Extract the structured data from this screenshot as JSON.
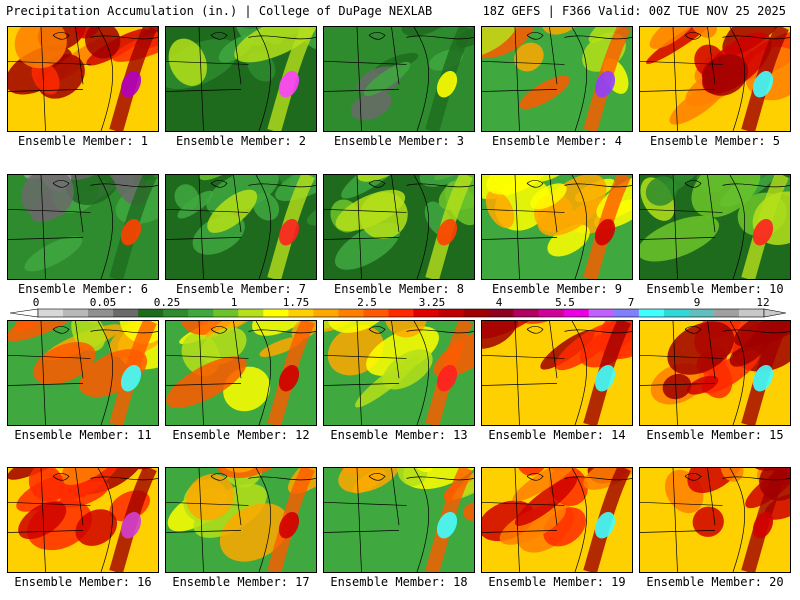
{
  "header": {
    "title_left": "Precipitation Accumulation (in.) | College of DuPage NEXLAB",
    "title_right": "18Z GEFS | F366 Valid: 00Z TUE NOV 25 2025"
  },
  "chart_data": {
    "type": "map",
    "title": "Precipitation Accumulation (in.)",
    "subtitle": "18Z GEFS | F366 Valid: 00Z TUE NOV 25 2025",
    "units": "in.",
    "members": [
      {
        "label": "Ensemble Member: 1",
        "dominant": "heavy",
        "max_color": "#b000c0"
      },
      {
        "label": "Ensemble Member: 2",
        "dominant": "light",
        "max_color": "#ff40ff"
      },
      {
        "label": "Ensemble Member: 3",
        "dominant": "dry-gray",
        "max_color": "#ffff00"
      },
      {
        "label": "Ensemble Member: 4",
        "dominant": "mixed",
        "max_color": "#9040ff"
      },
      {
        "label": "Ensemble Member: 5",
        "dominant": "heavy",
        "max_color": "#40ffff"
      },
      {
        "label": "Ensemble Member: 6",
        "dominant": "dry-gray",
        "max_color": "#ff4000"
      },
      {
        "label": "Ensemble Member: 7",
        "dominant": "light",
        "max_color": "#ff2020"
      },
      {
        "label": "Ensemble Member: 8",
        "dominant": "light",
        "max_color": "#ff4000"
      },
      {
        "label": "Ensemble Member: 9",
        "dominant": "mixed",
        "max_color": "#d00000"
      },
      {
        "label": "Ensemble Member: 10",
        "dominant": "light",
        "max_color": "#ff2020"
      },
      {
        "label": "Ensemble Member: 11",
        "dominant": "mixed",
        "max_color": "#40ffff"
      },
      {
        "label": "Ensemble Member: 12",
        "dominant": "mixed",
        "max_color": "#d00000"
      },
      {
        "label": "Ensemble Member: 13",
        "dominant": "mixed",
        "max_color": "#ff2020"
      },
      {
        "label": "Ensemble Member: 14",
        "dominant": "heavy",
        "max_color": "#40ffff"
      },
      {
        "label": "Ensemble Member: 15",
        "dominant": "heavy",
        "max_color": "#40ffff"
      },
      {
        "label": "Ensemble Member: 16",
        "dominant": "heavy",
        "max_color": "#d040d0"
      },
      {
        "label": "Ensemble Member: 17",
        "dominant": "mixed",
        "max_color": "#d00000"
      },
      {
        "label": "Ensemble Member: 18",
        "dominant": "mixed",
        "max_color": "#40ffff"
      },
      {
        "label": "Ensemble Member: 19",
        "dominant": "heavy",
        "max_color": "#40ffff"
      },
      {
        "label": "Ensemble Member: 20",
        "dominant": "heavy",
        "max_color": "#d00000"
      }
    ],
    "colorbar": {
      "tick_labels": [
        "0",
        "0.05",
        "0.25",
        "1",
        "1.75",
        "2.5",
        "3.25",
        "4",
        "5.5",
        "7",
        "9",
        "12"
      ],
      "colors": [
        "#d8d8d8",
        "#b8b8b8",
        "#909090",
        "#6a6a6a",
        "#1e6b1e",
        "#2e8b2e",
        "#3fa83f",
        "#6cc42a",
        "#b5e01a",
        "#ffff00",
        "#ffd000",
        "#ffa800",
        "#ff8000",
        "#ff5a00",
        "#ff2a00",
        "#e00000",
        "#c00000",
        "#a00000",
        "#900020",
        "#b00060",
        "#d0009a",
        "#e800e0",
        "#c060ff",
        "#8080ff",
        "#40ffff",
        "#30d8d8",
        "#60c0c0",
        "#a0a0a0",
        "#c8c8c8"
      ]
    }
  }
}
